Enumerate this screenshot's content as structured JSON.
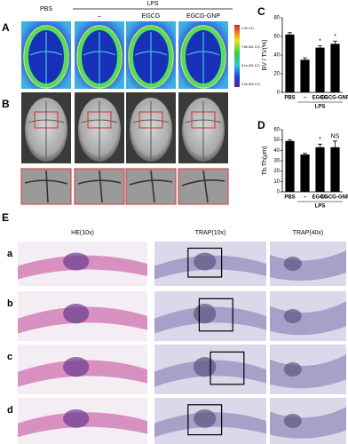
{
  "panel_a": {
    "label": "A",
    "group": "LPS",
    "columns": [
      "PBS",
      "–",
      "EGCG",
      "EGCG-GNP"
    ],
    "scale_labels": [
      "1.09 X.D.",
      "7.8e-001 X.D.",
      "5.1e-001 X.D.",
      "2.9e-002 X.D."
    ]
  },
  "panel_b": {
    "label": "B"
  },
  "panel_e": {
    "label": "E",
    "columns": [
      "HE(10x)",
      "TRAP(10x)",
      "TRAP(40x)"
    ],
    "rows": [
      "a",
      "b",
      "c",
      "d"
    ]
  },
  "chart_data": [
    {
      "type": "bar",
      "panel_label": "C",
      "y_label": "BV / TV(%)",
      "categories": [
        "PBS",
        "–",
        "EGCG",
        "EGCG-GNP"
      ],
      "values": [
        62,
        35,
        48,
        52
      ],
      "errors": [
        2,
        2,
        2,
        3
      ],
      "annotations": [
        null,
        null,
        "*",
        "*"
      ],
      "group_label": "LPS",
      "color": "#000000",
      "ylim": [
        0,
        80
      ],
      "yticks": [
        0,
        20,
        40,
        60,
        80
      ]
    },
    {
      "type": "bar",
      "panel_label": "D",
      "y_label": "Tb.Th(μm)",
      "categories": [
        "PBS",
        "–",
        "EGCG",
        "EGCG-GNP"
      ],
      "values": [
        49,
        36,
        43,
        43
      ],
      "errors": [
        1,
        1,
        3,
        6
      ],
      "annotations": [
        null,
        null,
        "*",
        "NS"
      ],
      "group_label": "LPS",
      "color": "#000000",
      "ylim": [
        0,
        60
      ],
      "yticks": [
        0,
        10,
        20,
        30,
        40,
        50,
        60
      ]
    }
  ]
}
